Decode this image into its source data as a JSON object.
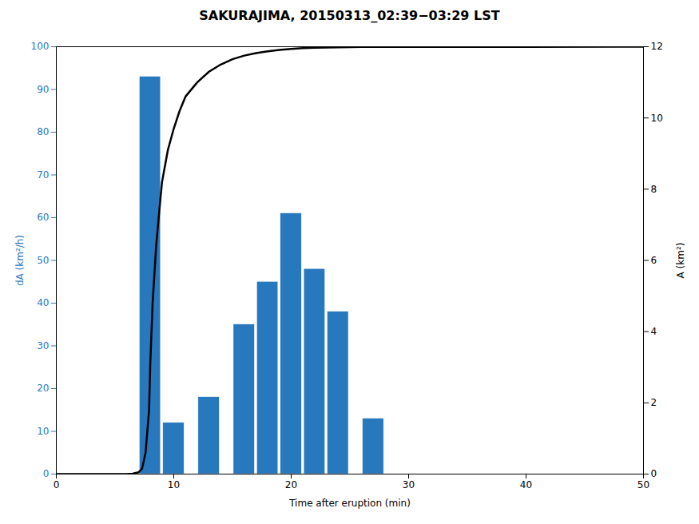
{
  "chart_data": {
    "type": "bar",
    "title": "SAKURAJIMA, 20150313_02:39−03:29 LST",
    "xlabel": "Time after eruption (min)",
    "ylabel": "dA (km²/h)",
    "y2label": "A (km²)",
    "xlim": [
      0,
      50
    ],
    "xticks": [
      0,
      10,
      20,
      30,
      40,
      50
    ],
    "ylim": [
      0,
      100
    ],
    "yticks": [
      0,
      10,
      20,
      30,
      40,
      50,
      60,
      70,
      80,
      90,
      100
    ],
    "y2lim": [
      0,
      12
    ],
    "y2ticks": [
      0,
      2,
      4,
      6,
      8,
      10,
      12
    ],
    "series": [
      {
        "type": "bar",
        "color": "#2878BE",
        "x": [
          8,
          10,
          13,
          16,
          18,
          20,
          22,
          24,
          27
        ],
        "values": [
          93,
          12,
          18,
          35,
          45,
          61,
          48,
          38,
          13
        ]
      },
      {
        "type": "line",
        "axis": "y2",
        "color": "black",
        "x": [
          0,
          6.0,
          6.5,
          7.0,
          7.3,
          7.6,
          7.9,
          8.0,
          8.2,
          8.5,
          8.8,
          9.0,
          9.5,
          10.0,
          10.5,
          11.0,
          12.0,
          13.0,
          14.0,
          15.0,
          16.0,
          17.0,
          18.0,
          19.0,
          20.0,
          21.0,
          22.0,
          23.0,
          24.0,
          25.0,
          26.0,
          28.0,
          30.0,
          35.0,
          40.0,
          50.0
        ],
        "values": [
          0,
          0.0,
          0.01,
          0.05,
          0.15,
          0.6,
          1.8,
          3.1,
          4.8,
          6.4,
          7.5,
          8.2,
          9.1,
          9.7,
          10.2,
          10.6,
          11.0,
          11.3,
          11.5,
          11.65,
          11.75,
          11.82,
          11.87,
          11.91,
          11.94,
          11.96,
          11.97,
          11.98,
          11.985,
          11.99,
          11.992,
          11.994,
          11.995,
          11.996,
          11.997,
          11.998
        ]
      }
    ]
  }
}
